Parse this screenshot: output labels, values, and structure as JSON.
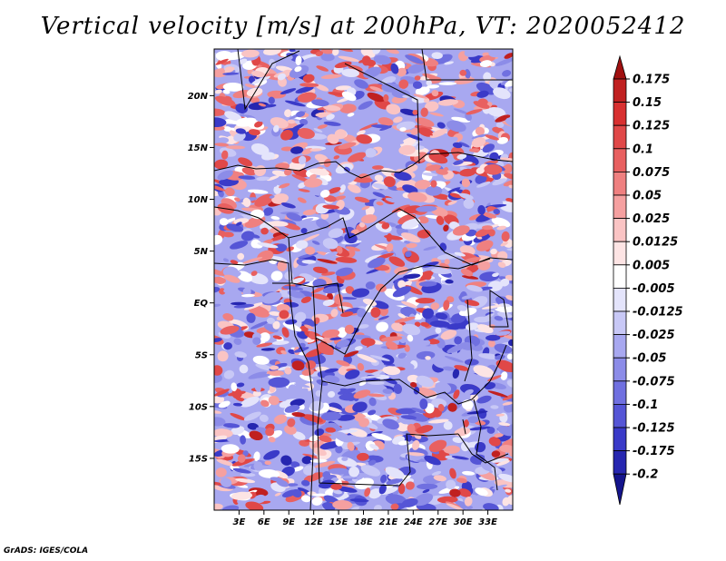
{
  "title": "Vertical velocity [m/s] at 200hPa, VT: 2020052412",
  "credit": "GrADS: IGES/COLA",
  "map": {
    "lat_range": [
      -20,
      24.5
    ],
    "lon_range": [
      0,
      36
    ],
    "lat_ticks": [
      {
        "value": 20,
        "label": "20N"
      },
      {
        "value": 15,
        "label": "15N"
      },
      {
        "value": 10,
        "label": "10N"
      },
      {
        "value": 5,
        "label": "5N"
      },
      {
        "value": 0,
        "label": "EQ"
      },
      {
        "value": -5,
        "label": "5S"
      },
      {
        "value": -10,
        "label": "10S"
      },
      {
        "value": -15,
        "label": "15S"
      }
    ],
    "lon_ticks": [
      {
        "value": 3,
        "label": "3E"
      },
      {
        "value": 6,
        "label": "6E"
      },
      {
        "value": 9,
        "label": "9E"
      },
      {
        "value": 12,
        "label": "12E"
      },
      {
        "value": 15,
        "label": "15E"
      },
      {
        "value": 18,
        "label": "18E"
      },
      {
        "value": 21,
        "label": "21E"
      },
      {
        "value": 24,
        "label": "24E"
      },
      {
        "value": 27,
        "label": "27E"
      },
      {
        "value": 30,
        "label": "30E"
      },
      {
        "value": 33,
        "label": "33E"
      }
    ]
  },
  "colorbar": {
    "labels": [
      "0.175",
      "0.15",
      "0.125",
      "0.1",
      "0.075",
      "0.05",
      "0.025",
      "0.0125",
      "0.005",
      "-0.005",
      "-0.0125",
      "-0.025",
      "-0.05",
      "-0.075",
      "-0.1",
      "-0.125",
      "-0.175",
      "-0.2"
    ],
    "colors": [
      "#a01010",
      "#c02020",
      "#d83030",
      "#e04848",
      "#e86060",
      "#ef8080",
      "#f5a0a0",
      "#fac4c4",
      "#fde4e4",
      "#ffffff",
      "#e4e4fb",
      "#c8c8f6",
      "#a8a8f0",
      "#8c8ce8",
      "#7070e0",
      "#5555d6",
      "#3a3ac8",
      "#2626b0",
      "#14148c"
    ]
  }
}
